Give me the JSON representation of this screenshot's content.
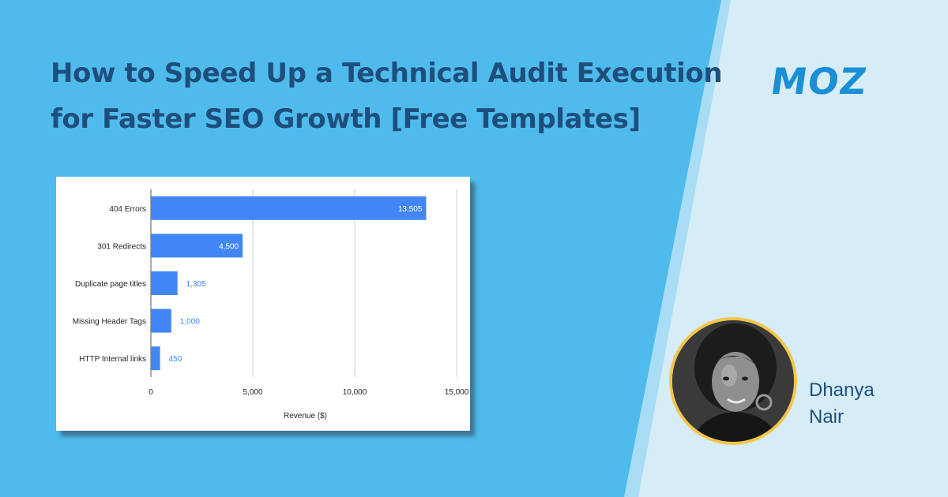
{
  "page": {
    "title_lines": [
      "How to Speed Up a Technical Audit Execution",
      "for Faster SEO Growth [Free Templates]"
    ],
    "logo_text": "MOZ",
    "author_lines": [
      "Dhanya",
      "Nair"
    ]
  },
  "colors": {
    "background_left": "#4ebbec",
    "background_right": "#d6edf8",
    "stripe": "#a9dcf5",
    "title": "#1e4f7c",
    "logo": "#1b8fd6",
    "bar": "#4285f4",
    "avatar_ring": "#f3c54a"
  },
  "chart_data": {
    "type": "bar",
    "orientation": "horizontal",
    "categories": [
      "404 Errors",
      "301 Redirects",
      "Duplicate page titles",
      "Missing Header Tags",
      "HTTP Internal links"
    ],
    "values": [
      13505,
      4500,
      1305,
      1000,
      450
    ],
    "data_labels": [
      "13,505",
      "4,500",
      "1,305",
      "1,000",
      "450"
    ],
    "xlabel": "Revenue ($)",
    "ylabel": "",
    "xlim": [
      0,
      15000
    ],
    "xticks": [
      0,
      5000,
      10000,
      15000
    ],
    "xtick_labels": [
      "0",
      "5,000",
      "10,000",
      "15,000"
    ],
    "grid": true,
    "legend": "none"
  }
}
